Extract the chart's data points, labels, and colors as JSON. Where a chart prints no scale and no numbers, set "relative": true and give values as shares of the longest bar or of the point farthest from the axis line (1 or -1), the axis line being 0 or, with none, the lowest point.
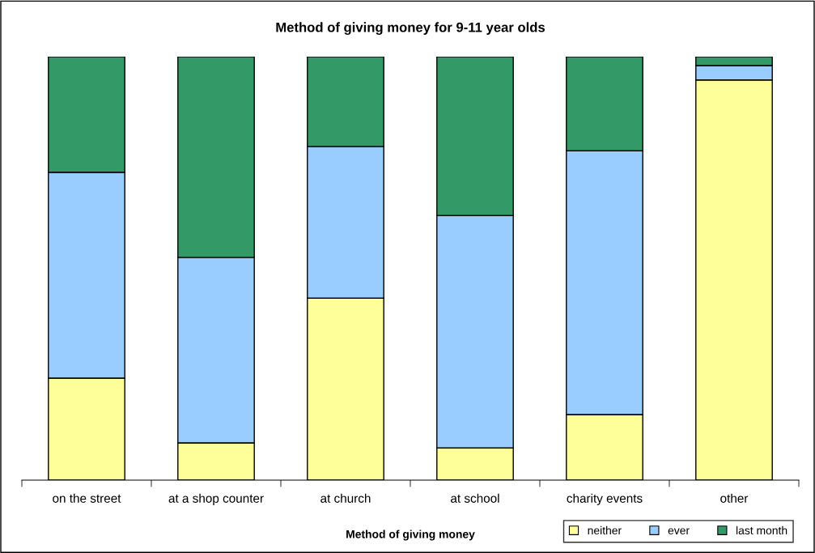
{
  "chart_data": {
    "type": "bar",
    "title": "Method of giving money for 9-11 year olds",
    "xlabel": "Method of giving money",
    "categories": [
      "on the street",
      "at a shop counter",
      "at church",
      "at school",
      "charity events",
      "other"
    ],
    "stacked": true,
    "relative": true,
    "legend": "bottom right",
    "grid": false,
    "series": [
      {
        "name": "neither",
        "color": "#ffff99",
        "values": [
          0.241,
          0.088,
          0.43,
          0.076,
          0.155,
          0.945
        ]
      },
      {
        "name": "ever",
        "color": "#99ccff",
        "values": [
          0.486,
          0.438,
          0.358,
          0.549,
          0.623,
          0.034
        ]
      },
      {
        "name": "last month",
        "color": "#339966",
        "values": [
          0.273,
          0.474,
          0.212,
          0.375,
          0.222,
          0.021
        ]
      }
    ]
  }
}
